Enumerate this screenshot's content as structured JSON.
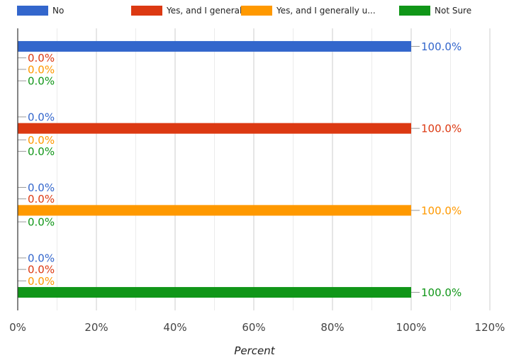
{
  "chart_data": {
    "type": "bar",
    "orientation": "horizontal",
    "categories": [
      "",
      "",
      "",
      ""
    ],
    "series": [
      {
        "name": "No",
        "color": "#3366cc",
        "values": [
          100.0,
          0.0,
          0.0,
          0.0
        ],
        "labels": [
          "100.0%",
          "0.0%",
          "0.0%",
          "0.0%"
        ]
      },
      {
        "name": "Yes, and I generally u...",
        "color": "#dc3912",
        "values": [
          0.0,
          100.0,
          0.0,
          0.0
        ],
        "labels": [
          "0.0%",
          "100.0%",
          "0.0%",
          "0.0%"
        ]
      },
      {
        "name": "Yes, and I generally u...",
        "color": "#ff9900",
        "values": [
          0.0,
          0.0,
          100.0,
          0.0
        ],
        "labels": [
          "0.0%",
          "0.0%",
          "100.0%",
          "0.0%"
        ]
      },
      {
        "name": "Not Sure",
        "color": "#109618",
        "values": [
          0.0,
          0.0,
          0.0,
          100.0
        ],
        "labels": [
          "0.0%",
          "0.0%",
          "0.0%",
          "100.0%"
        ]
      }
    ],
    "xlabel": "Percent",
    "ylabel": "",
    "xlim": [
      0,
      120
    ],
    "x_ticks": [
      "0%",
      "20%",
      "40%",
      "60%",
      "80%",
      "100%",
      "120%"
    ],
    "grid": true,
    "legend_position": "top"
  }
}
